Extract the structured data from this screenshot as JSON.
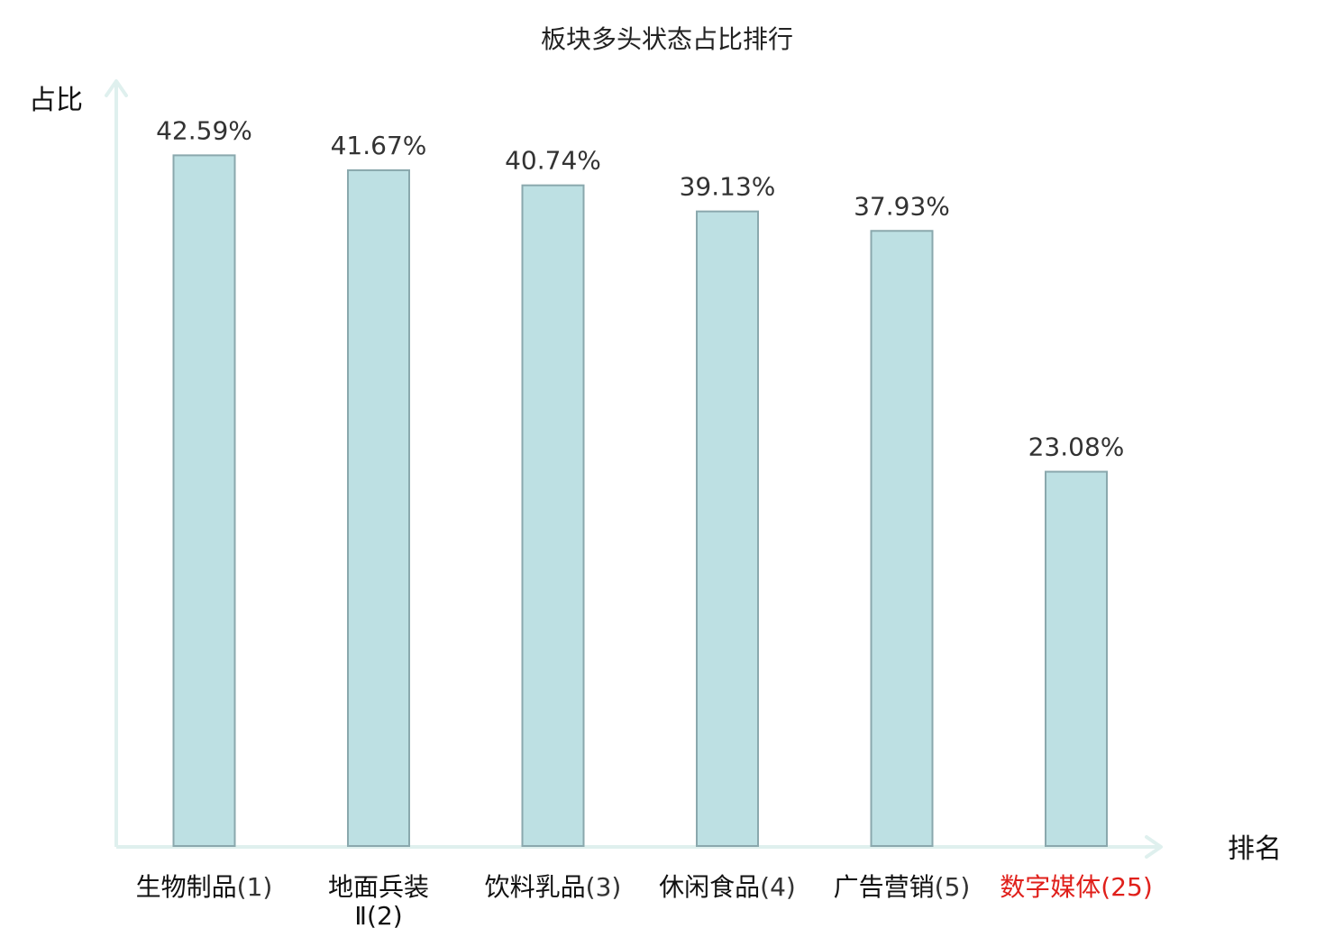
{
  "chart_data": {
    "type": "bar",
    "title": "板块多头状态占比排行",
    "xlabel": "排名",
    "ylabel": "占比",
    "categories": [
      {
        "name": "生物制品",
        "rank": "(1)",
        "highlight": false
      },
      {
        "name": "地面兵装",
        "line2": "Ⅱ(2)",
        "highlight": false
      },
      {
        "name": "饮料乳品",
        "rank": "(3)",
        "highlight": false
      },
      {
        "name": "休闲食品",
        "rank": "(4)",
        "highlight": false
      },
      {
        "name": "广告营销",
        "rank": "(5)",
        "highlight": false
      },
      {
        "name": "数字媒体",
        "rank": "(25)",
        "highlight": true
      }
    ],
    "values": [
      42.59,
      41.67,
      40.74,
      39.13,
      37.93,
      23.08
    ],
    "value_labels": [
      "42.59%",
      "41.67%",
      "40.74%",
      "39.13%",
      "37.93%",
      "23.08%"
    ],
    "ylim": [
      0,
      50
    ],
    "grid": false,
    "legend": "none"
  },
  "colors": {
    "bar_fill": "#bde0e3",
    "bar_stroke": "#8aa8ad",
    "axis": "#dff0ee",
    "highlight": "#e0201b",
    "label": "#111111",
    "value_label": "#333333"
  }
}
